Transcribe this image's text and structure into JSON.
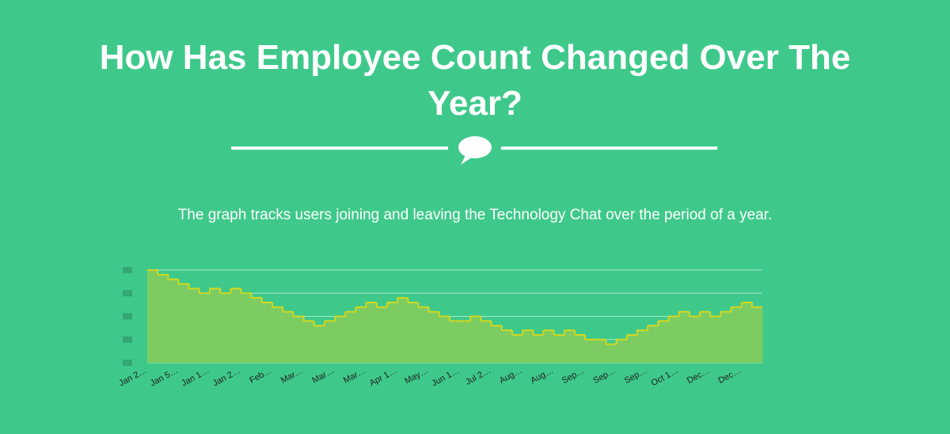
{
  "header": {
    "title": "How Has Employee Count Changed Over The Year?",
    "subtitle": "The graph tracks users joining and leaving the Technology Chat over the period of a year."
  },
  "chart_data": {
    "type": "step-area",
    "categories": [
      "Jan 2…",
      null,
      null,
      "Jan 5…",
      null,
      null,
      "Jan 1…",
      null,
      null,
      "Jan 2…",
      null,
      null,
      "Feb…",
      null,
      null,
      "Mar…",
      null,
      null,
      "Mar…",
      null,
      null,
      "Mar…",
      null,
      null,
      "Apr 1…",
      null,
      null,
      "May…",
      null,
      null,
      "Jun 1…",
      null,
      null,
      "Jul 2…",
      null,
      null,
      "Aug…",
      null,
      null,
      "Aug…",
      null,
      null,
      "Sep…",
      null,
      null,
      "Sep…",
      null,
      null,
      "Sep…",
      null,
      null,
      "Oct 1…",
      null,
      null,
      "Dec…",
      null,
      null,
      "Dec…",
      null
    ],
    "values": [
      4.0,
      3.8,
      3.6,
      3.4,
      3.2,
      3.0,
      3.2,
      3.0,
      3.2,
      3.0,
      2.8,
      2.6,
      2.4,
      2.2,
      2.0,
      1.8,
      1.6,
      1.8,
      2.0,
      2.2,
      2.4,
      2.6,
      2.4,
      2.6,
      2.8,
      2.6,
      2.4,
      2.2,
      2.0,
      1.8,
      1.8,
      2.0,
      1.8,
      1.6,
      1.4,
      1.2,
      1.4,
      1.2,
      1.4,
      1.2,
      1.4,
      1.2,
      1.0,
      1.0,
      0.8,
      1.0,
      1.2,
      1.4,
      1.6,
      1.8,
      2.0,
      2.2,
      2.0,
      2.2,
      2.0,
      2.2,
      2.4,
      2.6,
      2.4
    ],
    "color": "#d4d81e",
    "fill": "#7dcc62",
    "ylim": [
      0,
      4
    ],
    "yticks": [
      0,
      1,
      2,
      3,
      4
    ],
    "grid": true
  }
}
